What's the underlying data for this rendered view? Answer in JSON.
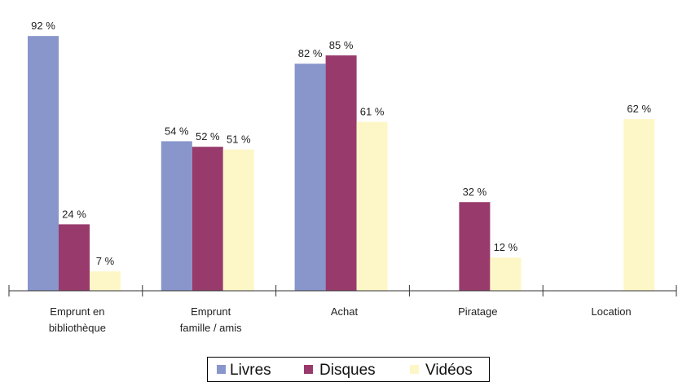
{
  "chart_data": {
    "type": "bar",
    "title": "",
    "xlabel": "",
    "ylabel": "",
    "ylim": [
      0,
      100
    ],
    "grid": false,
    "legend_position": "bottom-center",
    "categories": [
      [
        "Emprunt en",
        "bibliothèque"
      ],
      [
        "Emprunt",
        "famille / amis"
      ],
      [
        "Achat"
      ],
      [
        "Piratage"
      ],
      [
        "Location"
      ]
    ],
    "series": [
      {
        "name": "Livres",
        "color": "#8896cc",
        "values": [
          92,
          54,
          82,
          null,
          null
        ],
        "labels": [
          "92 %",
          "54 %",
          "82 %",
          "",
          ""
        ]
      },
      {
        "name": "Disques",
        "color": "#983b6c",
        "values": [
          24,
          52,
          85,
          32,
          null
        ],
        "labels": [
          "24 %",
          "52 %",
          "85 %",
          "32 %",
          ""
        ]
      },
      {
        "name": "Vidéos",
        "color": "#fdf7c7",
        "values": [
          7,
          51,
          61,
          12,
          62
        ],
        "labels": [
          "7 %",
          "51 %",
          "61 %",
          "12 %",
          "62 %"
        ]
      }
    ]
  }
}
